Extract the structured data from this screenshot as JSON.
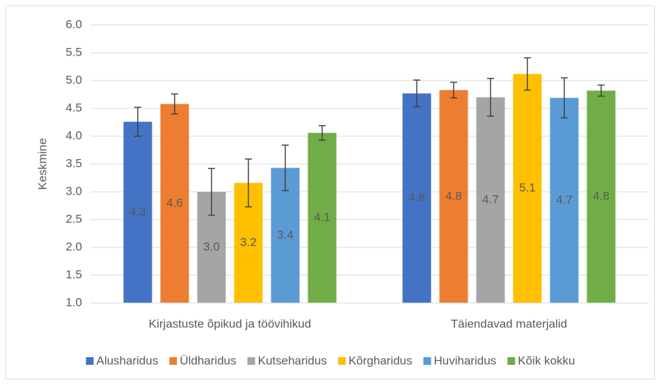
{
  "chart_data": {
    "type": "bar",
    "y_label": "Keskmine",
    "categories": [
      "Kirjastuste õpikud ja töövihikud",
      "Täiendavad materjalid"
    ],
    "series": [
      {
        "name": "Alusharidus",
        "color": "#4472c4",
        "values": [
          4.26,
          4.77
        ],
        "value_labels": [
          "4.3",
          "4.8"
        ],
        "errors": [
          0.26,
          0.24
        ]
      },
      {
        "name": "Üldharidus",
        "color": "#ed7d31",
        "values": [
          4.58,
          4.83
        ],
        "value_labels": [
          "4.6",
          "4.8"
        ],
        "errors": [
          0.18,
          0.14
        ]
      },
      {
        "name": "Kutseharidus",
        "color": "#a5a5a5",
        "values": [
          3.0,
          4.7
        ],
        "value_labels": [
          "3.0",
          "4.7"
        ],
        "errors": [
          0.42,
          0.34
        ]
      },
      {
        "name": "Kõrgharidus",
        "color": "#ffc000",
        "values": [
          3.16,
          5.12
        ],
        "value_labels": [
          "3.2",
          "5.1"
        ],
        "errors": [
          0.43,
          0.29
        ]
      },
      {
        "name": "Huviharidus",
        "color": "#5b9bd5",
        "values": [
          3.43,
          4.69
        ],
        "value_labels": [
          "3.4",
          "4.7"
        ],
        "errors": [
          0.41,
          0.36
        ]
      },
      {
        "name": "Kõik kokku",
        "color": "#70ad47",
        "values": [
          4.06,
          4.82
        ],
        "value_labels": [
          "4.1",
          "4.8"
        ],
        "errors": [
          0.13,
          0.1
        ]
      }
    ],
    "ylim": [
      1,
      6
    ],
    "yticks": [
      {
        "value": 1,
        "label": "1.0"
      },
      {
        "value": 1.5,
        "label": "1.5"
      },
      {
        "value": 2,
        "label": "2.0"
      },
      {
        "value": 2.5,
        "label": "2.5"
      },
      {
        "value": 3,
        "label": "3.0"
      },
      {
        "value": 3.5,
        "label": "3.5"
      },
      {
        "value": 4,
        "label": "4.0"
      },
      {
        "value": 4.5,
        "label": "4.5"
      },
      {
        "value": 5,
        "label": "5.0"
      },
      {
        "value": 5.5,
        "label": "5.5"
      },
      {
        "value": 6,
        "label": "6.0"
      }
    ],
    "grid": true,
    "legend": "bottom"
  }
}
